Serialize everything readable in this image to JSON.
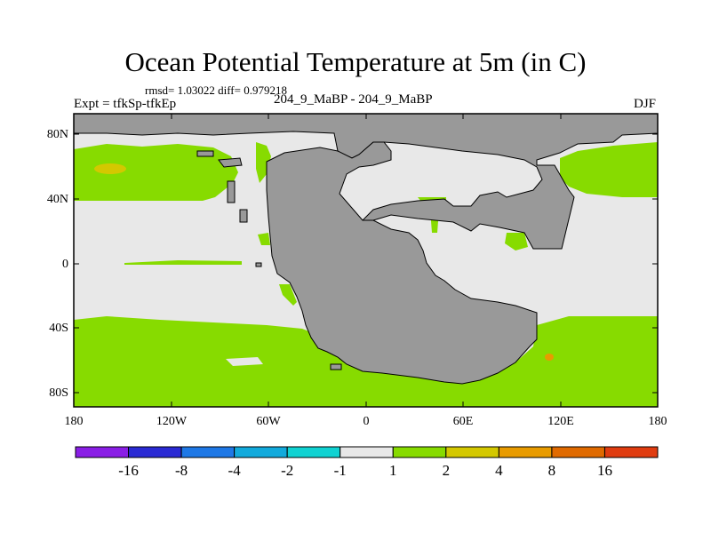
{
  "title": "Ocean Potential Temperature at 5m (in C)",
  "stats": "rmsd= 1.03022 diff= 0.979218",
  "experiment": "Expt = tfkSp-tfkEp",
  "case_label": "204_9_MaBP - 204_9_MaBP",
  "season": "DJF",
  "colors": {
    "land": "#999999",
    "neutral": "#e8e8e8",
    "bin_1_2": "#87db00",
    "bin_2_4": "#d4c800",
    "bin_4_8": "#e89b00",
    "bin_8_16": "#e06a00"
  },
  "map": {
    "lat_ticks": [
      "80N",
      "40N",
      "0",
      "40S",
      "80S"
    ],
    "lon_ticks": [
      "180",
      "120W",
      "60W",
      "0",
      "60E",
      "120E",
      "180"
    ]
  },
  "colorbar": {
    "colors": [
      "#8a1ee6",
      "#2a2ad4",
      "#1e78e6",
      "#12aadc",
      "#10d2d2",
      "#e8e8e8",
      "#87db00",
      "#d4c800",
      "#e89b00",
      "#e06a00",
      "#e03c10"
    ],
    "labels": [
      "-16",
      "-8",
      "-4",
      "-2",
      "-1",
      "1",
      "2",
      "4",
      "8",
      "16"
    ]
  }
}
